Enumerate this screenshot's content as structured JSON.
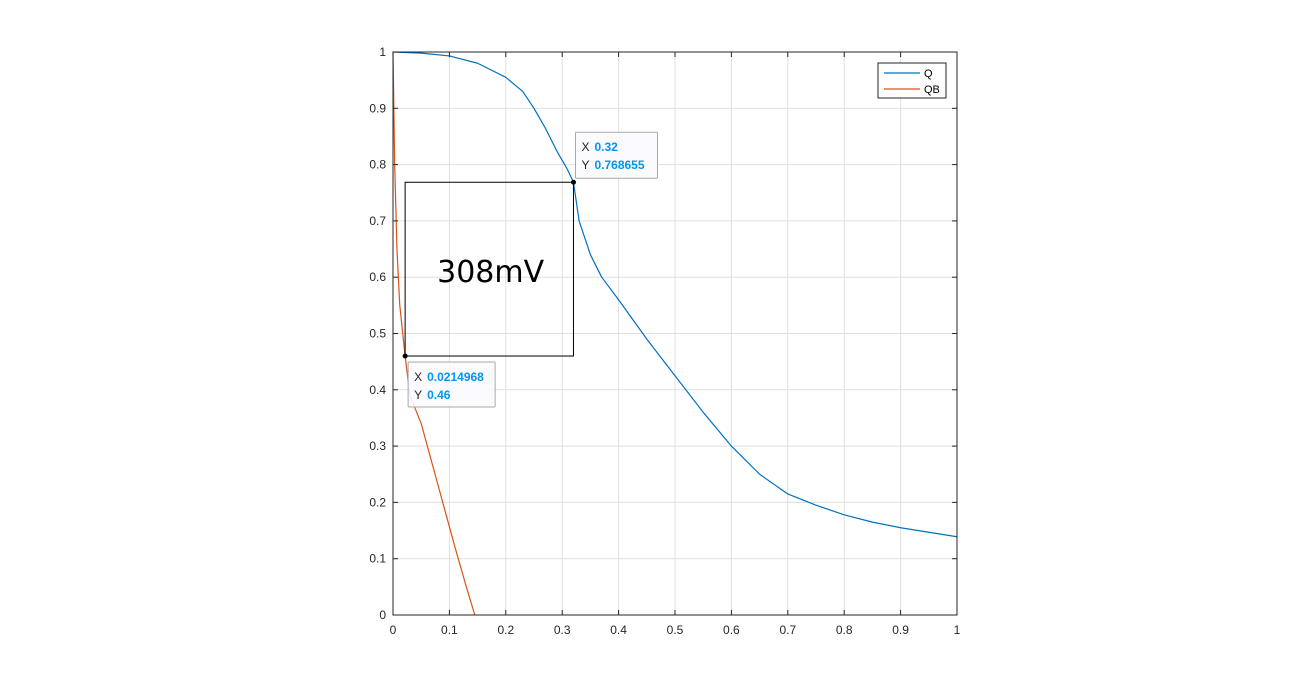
{
  "chart_data": {
    "type": "line",
    "title": "",
    "xlabel": "",
    "ylabel": "",
    "xlim": [
      0,
      1
    ],
    "ylim": [
      0,
      1
    ],
    "grid": true,
    "xticks": [
      0,
      0.1,
      0.2,
      0.3,
      0.4,
      0.5,
      0.6,
      0.7,
      0.8,
      0.9,
      1
    ],
    "yticks": [
      0,
      0.1,
      0.2,
      0.3,
      0.4,
      0.5,
      0.6,
      0.7,
      0.8,
      0.9,
      1
    ],
    "xtick_labels": [
      "0",
      "0.1",
      "0.2",
      "0.3",
      "0.4",
      "0.5",
      "0.6",
      "0.7",
      "0.8",
      "0.9",
      "1"
    ],
    "ytick_labels": [
      "0",
      "0.1",
      "0.2",
      "0.3",
      "0.4",
      "0.5",
      "0.6",
      "0.7",
      "0.8",
      "0.9",
      "1"
    ],
    "legend_position": "top-right",
    "series": [
      {
        "name": "Q",
        "color": "#0072BD",
        "x": [
          0,
          0.05,
          0.1,
          0.15,
          0.2,
          0.23,
          0.25,
          0.27,
          0.29,
          0.31,
          0.32,
          0.33,
          0.35,
          0.37,
          0.4,
          0.45,
          0.5,
          0.55,
          0.6,
          0.65,
          0.7,
          0.75,
          0.8,
          0.85,
          0.9,
          0.95,
          1.0
        ],
        "y": [
          1.0,
          0.998,
          0.993,
          0.98,
          0.955,
          0.93,
          0.9,
          0.865,
          0.825,
          0.79,
          0.768655,
          0.7,
          0.64,
          0.6,
          0.56,
          0.49,
          0.425,
          0.36,
          0.3,
          0.25,
          0.215,
          0.195,
          0.178,
          0.165,
          0.155,
          0.147,
          0.139
        ]
      },
      {
        "name": "QB",
        "color": "#D95319",
        "x": [
          0,
          0.003,
          0.007,
          0.012,
          0.0214968,
          0.03,
          0.05,
          0.08,
          0.11,
          0.13,
          0.145
        ],
        "y": [
          1.0,
          0.8,
          0.65,
          0.55,
          0.46,
          0.39,
          0.34,
          0.23,
          0.12,
          0.05,
          0.0
        ]
      }
    ],
    "datatips": [
      {
        "x_label": "X",
        "x_value": "0.32",
        "y_label": "Y",
        "y_value": "0.768655",
        "x": 0.32,
        "y": 0.768655
      },
      {
        "x_label": "X",
        "x_value": "0.0214968",
        "y_label": "Y",
        "y_value": "0.46",
        "x": 0.0214968,
        "y": 0.46
      }
    ],
    "annotation": {
      "text": "308mV",
      "box": {
        "x0": 0.0214968,
        "y0": 0.46,
        "x1": 0.32,
        "y1": 0.768655
      }
    }
  },
  "colors": {
    "datatip_value": "#0096F0",
    "axes": "#262626",
    "grid": "#DFDFDF"
  }
}
